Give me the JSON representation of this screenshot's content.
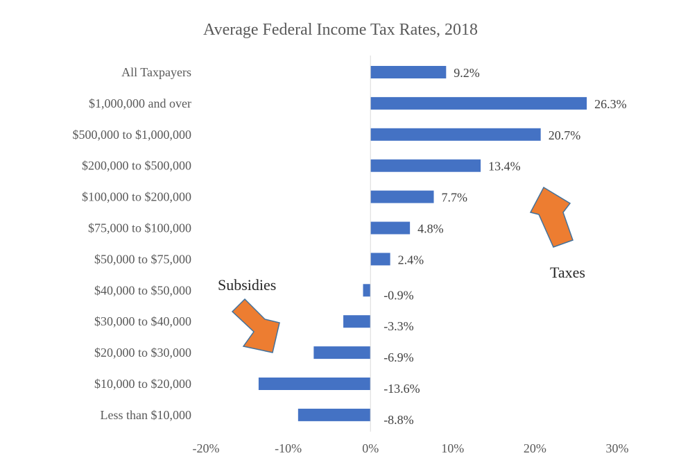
{
  "chart_data": {
    "type": "bar",
    "orientation": "horizontal",
    "title": "Average Federal Income Tax Rates, 2018",
    "xlabel": "",
    "ylabel": "",
    "categories": [
      "All Taxpayers",
      "$1,000,000 and over",
      "$500,000 to $1,000,000",
      "$200,000 to $500,000",
      "$100,000 to $200,000",
      "$75,000 to $100,000",
      "$50,000 to $75,000",
      "$40,000 to $50,000",
      "$30,000 to $40,000",
      "$20,000 to $30,000",
      "$10,000 to $20,000",
      "Less than $10,000"
    ],
    "values": [
      9.2,
      26.3,
      20.7,
      13.4,
      7.7,
      4.8,
      2.4,
      -0.9,
      -3.3,
      -6.9,
      -13.6,
      -8.8
    ],
    "data_labels": [
      "9.2%",
      "26.3%",
      "20.7%",
      "13.4%",
      "7.7%",
      "4.8%",
      "2.4%",
      "-0.9%",
      "-3.3%",
      "-6.9%",
      "-13.6%",
      "-8.8%"
    ],
    "xlim": [
      -20,
      30
    ],
    "xticks": [
      -20,
      -10,
      0,
      10,
      20,
      30
    ],
    "xtick_labels": [
      "-20%",
      "-10%",
      "0%",
      "10%",
      "20%",
      "30%"
    ],
    "grid": false,
    "legend": "none",
    "annotations": {
      "subsidies_label": "Subsidies",
      "taxes_label": "Taxes"
    }
  },
  "colors": {
    "bar": "#4472c4",
    "arrow_fill": "#ed7d31",
    "arrow_stroke": "#41719c",
    "axis": "#d9d9d9"
  }
}
